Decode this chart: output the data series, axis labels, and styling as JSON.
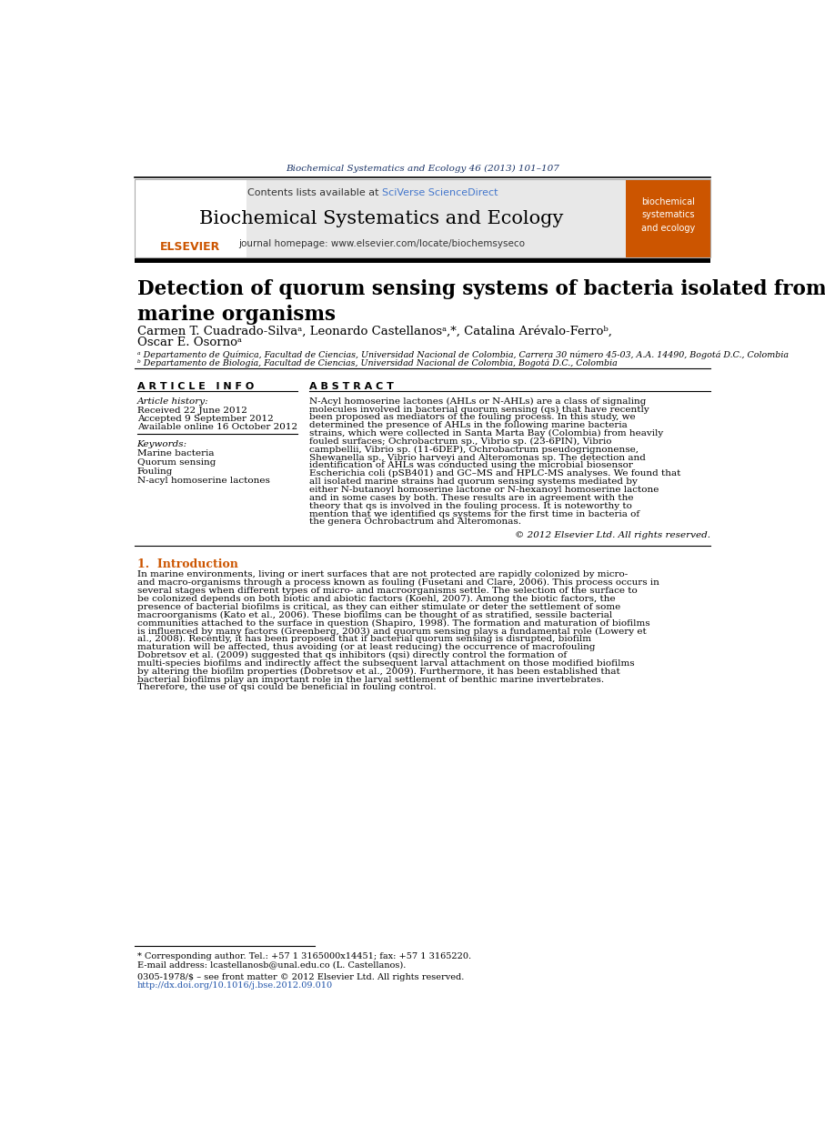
{
  "journal_ref": "Biochemical Systematics and Ecology 46 (2013) 101–107",
  "journal_name": "Biochemical Systematics and Ecology",
  "contents_text": "Contents lists available at ",
  "sciverse_text": "SciVerse ScienceDirect",
  "homepage_text": "journal homepage: www.elsevier.com/locate/biochemsyseco",
  "title": "Detection of quorum sensing systems of bacteria isolated from fouled\nmarine organisms",
  "authors_line1": "Carmen T. Cuadrado-Silvaᵃ, Leonardo Castellanosᵃ,*, Catalina Arévalo-Ferroᵇ,",
  "authors_line2": "Oscar E. Osornoᵃ",
  "affil_a": "ᵃ Departamento de Química, Facultad de Ciencias, Universidad Nacional de Colombia, Carrera 30 número 45-03, A.A. 14490, Bogotá D.C., Colombia",
  "affil_b": "ᵇ Departamento de Biología, Facultad de Ciencias, Universidad Nacional de Colombia, Bogotá D.C., Colombia",
  "article_info_header": "A R T I C L E   I N F O",
  "abstract_header": "A B S T R A C T",
  "article_history_label": "Article history:",
  "received": "Received 22 June 2012",
  "accepted": "Accepted 9 September 2012",
  "available": "Available online 16 October 2012",
  "keywords_label": "Keywords:",
  "keywords": [
    "Marine bacteria",
    "Quorum sensing",
    "Fouling",
    "N-acyl homoserine lactones"
  ],
  "abstract_text": "N-Acyl homoserine lactones (AHLs or N-AHLs) are a class of signaling molecules involved in bacterial quorum sensing (qs) that have recently been proposed as mediators of the fouling process. In this study, we determined the presence of AHLs in the following marine bacteria strains, which were collected in Santa Marta Bay (Colombia) from heavily fouled surfaces; Ochrobactrum sp., Vibrio sp. (23-6PIN), Vibrio campbellii, Vibrio sp. (11-6DEP), Ochrobactrum pseudogrignonense, Shewanella sp., Vibrio harveyi and Alteromonas sp. The detection and identification of AHLs was conducted using the microbial biosensor Escherichia coli (pSB401) and GC–MS and HPLC-MS analyses. We found that all isolated marine strains had quorum sensing systems mediated by either N-butanoyl homoserine lactone or N-hexanoyl homoserine lactone and in some cases by both. These results are in agreement with the theory that qs is involved in the fouling process. It is noteworthy to mention that we identified qs systems for the first time in bacteria of the genera Ochrobactrum and Alteromonas.",
  "copyright": "© 2012 Elsevier Ltd. All rights reserved.",
  "section1_header": "1.  Introduction",
  "intro_text": "   In marine environments, living or inert surfaces that are not protected are rapidly colonized by micro- and macro-organisms through a process known as fouling (Fusetani and Clare, 2006). This process occurs in several stages when different types of micro- and macroorganisms settle. The selection of the surface to be colonized depends on both biotic and abiotic factors (Koehl, 2007). Among the biotic factors, the presence of bacterial biofilms is critical, as they can either stimulate or deter the settlement of some macroorganisms (Kato et al., 2006). These biofilms can be thought of as stratified, sessile bacterial communities attached to the surface in question (Shapiro, 1998). The formation and maturation of biofilms is influenced by many factors (Greenberg, 2003) and quorum sensing plays a fundamental role (Lowery et al., 2008). Recently, it has been proposed that if bacterial quorum sensing is disrupted, biofilm maturation will be affected, thus avoiding (or at least reducing) the occurrence of macrofouling Dobretsov et al. (2009) suggested that qs inhibitors (qsi) directly control the formation of multi-species biofilms and indirectly affect the subsequent larval attachment on those modified biofilms by altering the biofilm properties (Dobretsov et al., 2009). Furthermore, it has been established that bacterial biofilms play an important role in the larval settlement of benthic marine invertebrates. Therefore, the use of qsi could be beneficial in fouling control.",
  "footnote_corr": "* Corresponding author. Tel.: +57 1 3165000x14451; fax: +57 1 3165220.",
  "footnote_email": "E-mail address: lcastellanosb@unal.edu.co (L. Castellanos).",
  "footnote_issn": "0305-1978/$ – see front matter © 2012 Elsevier Ltd. All rights reserved.",
  "footnote_doi": "http://dx.doi.org/10.1016/j.bse.2012.09.010",
  "bg_color": "#ffffff",
  "orange_color": "#cc5500",
  "blue_color": "#2255aa",
  "dark_blue": "#1a3366",
  "black": "#000000",
  "light_gray": "#e8e8e8",
  "sciverse_blue": "#4477cc"
}
